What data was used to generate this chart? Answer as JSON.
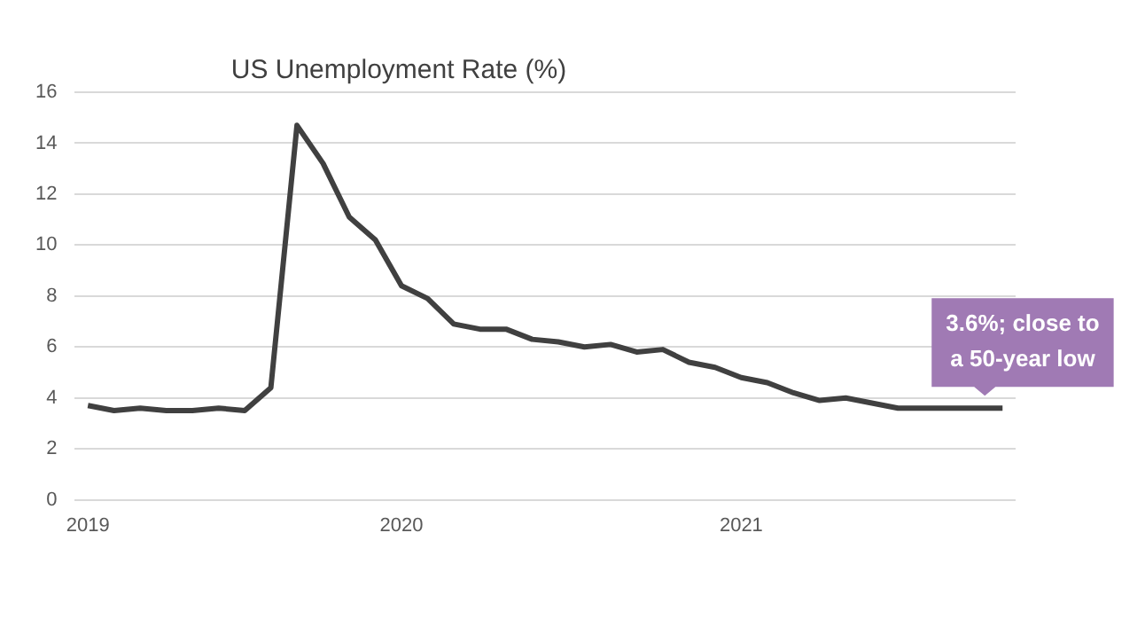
{
  "chart_data": {
    "type": "line",
    "title": "US Unemployment Rate (%)",
    "categories": [
      "2019",
      null,
      null,
      null,
      null,
      null,
      null,
      null,
      null,
      null,
      null,
      null,
      "2020",
      null,
      null,
      null,
      null,
      null,
      null,
      null,
      null,
      null,
      null,
      null,
      null,
      "2021",
      null,
      null,
      null,
      null,
      null,
      null,
      null,
      null,
      null,
      null
    ],
    "series": [
      {
        "color": "#404040",
        "values": [
          3.7,
          3.5,
          3.6,
          3.5,
          3.5,
          3.6,
          3.5,
          4.4,
          14.7,
          13.2,
          11.1,
          10.2,
          8.4,
          7.9,
          6.9,
          6.7,
          6.7,
          6.3,
          6.2,
          6.0,
          6.1,
          5.8,
          5.9,
          5.4,
          5.2,
          4.8,
          4.6,
          4.2,
          3.9,
          4.0,
          3.8,
          3.6,
          3.6,
          3.6,
          3.6,
          3.6
        ]
      }
    ],
    "ylim": [
      0,
      16
    ],
    "yticks": [
      0,
      2,
      4,
      6,
      8,
      10,
      12,
      14,
      16
    ],
    "grid": "y",
    "legend": false,
    "marker": "none",
    "line_style": "solid",
    "annotations": [
      "3.6%; close to a 50-year low"
    ]
  }
}
